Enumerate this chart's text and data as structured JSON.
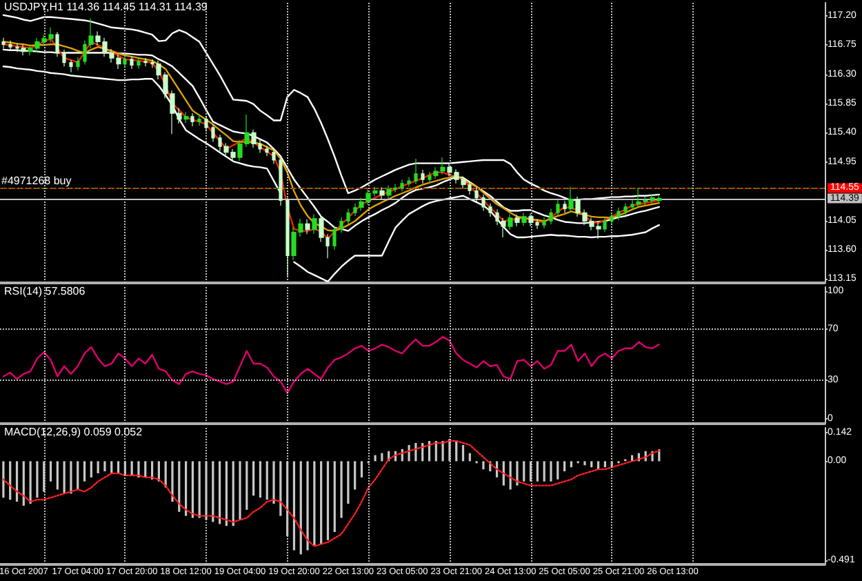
{
  "chart_data": [
    {
      "type": "candlestick",
      "title": "USDJPY,H1 114.36 114.45 114.31 114.39",
      "categories": [
        null,
        null,
        null,
        null,
        null,
        null,
        null,
        null,
        null,
        null,
        null,
        null,
        null,
        null,
        null,
        null,
        null,
        null,
        null,
        null,
        null,
        null,
        null,
        null,
        null,
        null,
        null,
        null,
        null,
        null,
        null,
        null,
        null,
        null,
        null,
        null,
        null,
        null,
        null,
        null,
        null,
        null,
        null,
        null,
        null,
        null,
        null,
        null,
        null,
        null,
        null,
        null,
        null,
        null,
        null,
        null,
        null,
        null,
        null,
        null,
        null,
        null,
        null,
        null,
        null,
        null,
        null,
        null,
        null,
        null,
        null,
        null,
        null,
        null,
        null,
        null,
        null,
        null,
        null,
        null,
        null,
        null,
        null,
        null,
        null,
        null,
        null,
        null,
        null,
        null,
        null,
        null,
        null,
        null,
        null,
        null,
        null,
        null,
        null,
        null,
        null,
        null,
        null,
        null,
        null,
        null,
        null,
        null,
        null,
        null,
        null,
        null,
        null,
        null,
        null,
        null,
        null,
        null,
        null,
        null,
        null,
        null
      ],
      "ohlc": [
        [
          116.8,
          116.86,
          116.7,
          116.76
        ],
        [
          116.76,
          116.82,
          116.66,
          116.72
        ],
        [
          116.72,
          116.78,
          116.64,
          116.7
        ],
        [
          116.7,
          116.76,
          116.59,
          116.65
        ],
        [
          116.65,
          116.76,
          116.59,
          116.7
        ],
        [
          116.7,
          116.86,
          116.64,
          116.8
        ],
        [
          116.8,
          116.91,
          116.74,
          116.85
        ],
        [
          116.85,
          117.02,
          116.79,
          116.91
        ],
        [
          116.91,
          116.95,
          116.57,
          116.63
        ],
        [
          116.63,
          116.68,
          116.42,
          116.48
        ],
        [
          116.48,
          116.52,
          116.33,
          116.42
        ],
        [
          116.42,
          116.56,
          116.36,
          116.5
        ],
        [
          116.5,
          116.82,
          116.45,
          116.76
        ],
        [
          116.76,
          117.16,
          116.7,
          116.89
        ],
        [
          116.89,
          116.96,
          116.74,
          116.8
        ],
        [
          116.8,
          116.86,
          116.57,
          116.63
        ],
        [
          116.63,
          116.69,
          116.48,
          116.55
        ],
        [
          116.55,
          116.6,
          116.38,
          116.46
        ],
        [
          116.46,
          116.59,
          116.4,
          116.53
        ],
        [
          116.53,
          116.58,
          116.38,
          116.44
        ],
        [
          116.44,
          116.56,
          116.39,
          116.5
        ],
        [
          116.5,
          116.55,
          116.42,
          116.48
        ],
        [
          116.48,
          116.53,
          116.4,
          116.46
        ],
        [
          116.46,
          116.51,
          116.22,
          116.29
        ],
        [
          116.29,
          116.33,
          115.93,
          116.0
        ],
        [
          116.0,
          116.05,
          115.38,
          115.7
        ],
        [
          115.7,
          115.78,
          115.54,
          115.61
        ],
        [
          115.61,
          115.72,
          115.55,
          115.65
        ],
        [
          115.65,
          115.7,
          115.5,
          115.57
        ],
        [
          115.57,
          115.68,
          115.51,
          115.61
        ],
        [
          115.61,
          115.66,
          115.42,
          115.48
        ],
        [
          115.48,
          115.53,
          115.26,
          115.32
        ],
        [
          115.32,
          115.37,
          115.12,
          115.19
        ],
        [
          115.19,
          115.24,
          115.03,
          115.1
        ],
        [
          115.1,
          115.15,
          114.96,
          115.02
        ],
        [
          115.02,
          115.29,
          114.97,
          115.23
        ],
        [
          115.23,
          115.68,
          115.18,
          115.4
        ],
        [
          115.4,
          115.45,
          115.17,
          115.23
        ],
        [
          115.23,
          115.29,
          115.09,
          115.15
        ],
        [
          115.15,
          115.2,
          115.04,
          115.1
        ],
        [
          115.1,
          115.15,
          114.92,
          114.98
        ],
        [
          114.98,
          115.02,
          114.28,
          114.36
        ],
        [
          114.36,
          114.4,
          113.19,
          113.51
        ],
        [
          113.51,
          113.95,
          113.44,
          113.87
        ],
        [
          113.87,
          114.08,
          113.8,
          114.0
        ],
        [
          114.0,
          114.07,
          113.84,
          113.91
        ],
        [
          113.91,
          114.15,
          113.85,
          114.08
        ],
        [
          114.08,
          114.13,
          113.72,
          113.79
        ],
        [
          113.79,
          113.84,
          113.47,
          113.66
        ],
        [
          113.66,
          113.97,
          113.6,
          113.91
        ],
        [
          113.91,
          114.1,
          113.86,
          114.04
        ],
        [
          114.04,
          114.23,
          113.99,
          114.17
        ],
        [
          114.17,
          114.31,
          114.12,
          114.25
        ],
        [
          114.25,
          114.4,
          114.2,
          114.34
        ],
        [
          114.34,
          114.53,
          114.29,
          114.47
        ],
        [
          114.47,
          114.57,
          114.42,
          114.51
        ],
        [
          114.51,
          114.56,
          114.38,
          114.44
        ],
        [
          114.44,
          114.59,
          114.39,
          114.53
        ],
        [
          114.53,
          114.61,
          114.48,
          114.55
        ],
        [
          114.55,
          114.68,
          114.5,
          114.62
        ],
        [
          114.62,
          114.72,
          114.57,
          114.66
        ],
        [
          114.66,
          115.0,
          114.61,
          114.77
        ],
        [
          114.77,
          114.83,
          114.62,
          114.68
        ],
        [
          114.68,
          114.8,
          114.63,
          114.74
        ],
        [
          114.74,
          114.87,
          114.69,
          114.81
        ],
        [
          114.81,
          115.02,
          114.76,
          114.87
        ],
        [
          114.87,
          114.92,
          114.73,
          114.79
        ],
        [
          114.79,
          114.84,
          114.62,
          114.68
        ],
        [
          114.68,
          114.73,
          114.54,
          114.6
        ],
        [
          114.6,
          114.65,
          114.45,
          114.51
        ],
        [
          114.51,
          114.56,
          114.34,
          114.4
        ],
        [
          114.4,
          114.45,
          114.2,
          114.26
        ],
        [
          114.26,
          114.31,
          114.11,
          114.17
        ],
        [
          114.17,
          114.22,
          113.98,
          114.04
        ],
        [
          114.04,
          114.09,
          113.79,
          113.96
        ],
        [
          113.96,
          114.15,
          113.91,
          114.09
        ],
        [
          114.09,
          114.14,
          113.96,
          114.02
        ],
        [
          114.02,
          114.17,
          113.97,
          114.11
        ],
        [
          114.11,
          114.16,
          113.96,
          114.02
        ],
        [
          114.02,
          114.07,
          113.92,
          113.98
        ],
        [
          113.98,
          114.1,
          113.93,
          114.04
        ],
        [
          114.04,
          114.23,
          113.99,
          114.17
        ],
        [
          114.17,
          114.36,
          114.12,
          114.3
        ],
        [
          114.3,
          114.35,
          114.17,
          114.23
        ],
        [
          114.23,
          114.57,
          114.18,
          114.38
        ],
        [
          114.38,
          114.42,
          114.11,
          114.17
        ],
        [
          114.17,
          114.22,
          113.98,
          114.04
        ],
        [
          114.04,
          114.09,
          113.9,
          113.96
        ],
        [
          113.96,
          114.01,
          113.77,
          113.92
        ],
        [
          113.92,
          114.1,
          113.87,
          114.04
        ],
        [
          114.04,
          114.17,
          113.99,
          114.11
        ],
        [
          114.11,
          114.25,
          114.06,
          114.19
        ],
        [
          114.19,
          114.32,
          114.14,
          114.26
        ],
        [
          114.26,
          114.36,
          114.21,
          114.3
        ],
        [
          114.3,
          114.55,
          114.25,
          114.34
        ],
        [
          114.34,
          114.42,
          114.29,
          114.36
        ],
        [
          114.36,
          114.46,
          114.31,
          114.4
        ],
        [
          114.36,
          114.45,
          114.31,
          114.39
        ],
        null,
        null,
        null,
        null,
        null,
        null,
        null,
        null,
        null,
        null,
        null,
        null,
        null,
        null,
        null,
        null,
        null,
        null,
        null,
        null,
        null,
        null,
        null,
        null
      ],
      "colors": [
        "#c8ffc8",
        "#c8ffc8",
        "#c8ffc8",
        "#c8ffc8",
        "#22dd22",
        "#22dd22",
        "#22dd22",
        "#22dd22",
        "#c8ffc8",
        "#c8ffc8",
        "#c8ffc8",
        "#22dd22",
        "#22dd22",
        "#22dd22",
        "#c8ffc8",
        "#c8ffc8",
        "#c8ffc8",
        "#c8ffc8",
        "#22dd22",
        "#c8ffc8",
        "#22dd22",
        "#c8ffc8",
        "#c8ffc8",
        "#c8ffc8",
        "#c8ffc8",
        "#c8ffc8",
        "#c8ffc8",
        "#22dd22",
        "#c8ffc8",
        "#22dd22",
        "#c8ffc8",
        "#c8ffc8",
        "#c8ffc8",
        "#c8ffc8",
        "#c8ffc8",
        "#22dd22",
        "#22dd22",
        "#c8ffc8",
        "#c8ffc8",
        "#c8ffc8",
        "#c8ffc8",
        "#c8ffc8",
        "#c8ffc8",
        "#22dd22",
        "#22dd22",
        "#c8ffc8",
        "#22dd22",
        "#c8ffc8",
        "#c8ffc8",
        "#22dd22",
        "#22dd22",
        "#22dd22",
        "#22dd22",
        "#22dd22",
        "#22dd22",
        "#22dd22",
        "#c8ffc8",
        "#22dd22",
        "#22dd22",
        "#22dd22",
        "#22dd22",
        "#22dd22",
        "#c8ffc8",
        "#22dd22",
        "#22dd22",
        "#22dd22",
        "#c8ffc8",
        "#c8ffc8",
        "#c8ffc8",
        "#c8ffc8",
        "#c8ffc8",
        "#c8ffc8",
        "#c8ffc8",
        "#c8ffc8",
        "#c8ffc8",
        "#22dd22",
        "#c8ffc8",
        "#22dd22",
        "#c8ffc8",
        "#c8ffc8",
        "#22dd22",
        "#22dd22",
        "#22dd22",
        "#c8ffc8",
        "#22dd22",
        "#c8ffc8",
        "#c8ffc8",
        "#c8ffc8",
        "#c8ffc8",
        "#22dd22",
        "#22dd22",
        "#22dd22",
        "#22dd22",
        "#22dd22",
        "#22dd22",
        "#22dd22",
        "#22dd22",
        "#22dd22",
        null,
        null,
        null,
        null,
        null,
        null,
        null,
        null,
        null,
        null,
        null,
        null,
        null,
        null,
        null,
        null,
        null,
        null,
        null,
        null,
        null,
        null,
        null,
        null
      ],
      "series": [
        {
          "type": "line",
          "color": "#ffffff",
          "values": [
            117.21,
            117.19,
            117.17,
            117.14,
            117.12,
            117.15,
            117.18,
            117.18,
            117.17,
            117.16,
            117.15,
            117.14,
            117.13,
            117.11,
            117.08,
            117.05,
            117.02,
            117.01,
            117.0,
            116.99,
            116.97,
            116.94,
            116.91,
            116.81,
            116.82,
            116.93,
            116.98,
            116.94,
            116.87,
            116.8,
            116.63,
            116.46,
            116.29,
            116.1,
            115.91,
            115.9,
            115.89,
            115.84,
            115.74,
            115.67,
            115.59,
            115.59,
            115.95,
            116.06,
            116.01,
            115.95,
            115.77,
            115.55,
            115.3,
            115.03,
            114.74,
            114.47,
            114.51,
            114.56,
            114.62,
            114.68,
            114.73,
            114.78,
            114.83,
            114.87,
            114.91,
            114.93,
            114.93,
            114.93,
            114.93,
            114.93,
            114.93,
            114.94,
            114.95,
            114.96,
            114.97,
            114.98,
            114.98,
            114.98,
            114.98,
            114.92,
            114.79,
            114.68,
            114.62,
            114.57,
            114.51,
            114.47,
            114.44,
            114.4,
            114.36,
            114.37,
            114.38,
            114.38,
            114.39,
            114.4,
            114.41,
            114.41,
            114.42,
            114.42,
            114.43,
            114.43,
            114.44,
            114.45,
            null,
            null,
            null,
            null,
            null,
            null,
            null,
            null,
            null,
            null,
            null,
            null,
            null,
            null,
            null,
            null,
            null,
            null,
            null,
            null,
            null,
            null,
            null,
            null
          ]
        },
        {
          "type": "line",
          "color": "#ffffff",
          "values": [
            116.68,
            116.67,
            116.67,
            116.66,
            116.66,
            116.65,
            116.64,
            116.64,
            116.63,
            116.63,
            116.63,
            116.63,
            116.63,
            116.63,
            116.63,
            116.63,
            116.63,
            116.62,
            116.62,
            116.61,
            116.6,
            116.6,
            116.59,
            116.53,
            116.48,
            116.42,
            116.32,
            116.22,
            116.12,
            115.94,
            115.75,
            115.57,
            115.52,
            115.47,
            115.42,
            115.4,
            115.39,
            115.35,
            115.3,
            115.25,
            115.15,
            115.04,
            114.86,
            114.68,
            114.54,
            114.4,
            114.26,
            114.11,
            114.03,
            113.94,
            113.92,
            113.89,
            113.97,
            114.04,
            114.1,
            114.15,
            114.21,
            114.26,
            114.32,
            114.4,
            114.47,
            114.52,
            114.54,
            114.56,
            114.59,
            114.64,
            114.68,
            114.72,
            114.71,
            114.64,
            114.57,
            114.5,
            114.43,
            114.34,
            114.25,
            114.2,
            114.2,
            114.21,
            114.21,
            114.17,
            114.13,
            114.1,
            114.06,
            114.03,
            114.02,
            114.01,
            114.01,
            114.02,
            114.03,
            114.04,
            114.07,
            114.1,
            114.12,
            114.15,
            114.18,
            114.2,
            114.23,
            114.26,
            null,
            null,
            null,
            null,
            null,
            null,
            null,
            null,
            null,
            null,
            null,
            null,
            null,
            null,
            null,
            null,
            null,
            null,
            null,
            null,
            null,
            null,
            null,
            null
          ]
        },
        {
          "type": "line",
          "color": "#ffffff",
          "values": [
            116.42,
            116.41,
            116.39,
            116.38,
            116.37,
            116.35,
            116.34,
            116.32,
            116.31,
            116.3,
            116.28,
            116.27,
            116.26,
            116.25,
            116.24,
            116.23,
            116.22,
            116.21,
            116.21,
            116.22,
            116.22,
            116.23,
            116.23,
            116.12,
            115.98,
            115.82,
            115.61,
            115.44,
            115.37,
            115.3,
            115.24,
            115.17,
            115.1,
            115.03,
            114.96,
            114.93,
            114.9,
            114.88,
            114.87,
            114.85,
            114.66,
            114.47,
            null,
            113.41,
            113.34,
            113.26,
            113.21,
            113.16,
            113.11,
            113.23,
            113.34,
            113.43,
            113.51,
            113.51,
            113.51,
            113.51,
            113.51,
            113.73,
            113.94,
            114.05,
            114.15,
            114.21,
            114.27,
            114.32,
            114.35,
            114.37,
            114.39,
            114.41,
            114.43,
            114.38,
            114.33,
            114.28,
            114.2,
            114.08,
            113.95,
            113.84,
            113.79,
            113.79,
            113.8,
            113.81,
            113.82,
            113.83,
            113.82,
            113.82,
            113.81,
            113.8,
            113.8,
            113.79,
            113.8,
            113.8,
            113.81,
            113.81,
            113.82,
            113.83,
            113.85,
            113.87,
            113.93,
            113.98,
            null,
            null,
            null,
            null,
            null,
            null,
            null,
            null,
            null,
            null,
            null,
            null,
            null,
            null,
            null,
            null,
            null,
            null,
            null,
            null,
            null,
            null,
            null,
            null
          ]
        },
        {
          "type": "line",
          "color": "#ee2200",
          "values": [
            116.76,
            116.75,
            116.73,
            116.72,
            116.7,
            116.75,
            116.8,
            116.85,
            116.7,
            116.55,
            116.52,
            116.48,
            116.64,
            116.8,
            116.75,
            116.7,
            116.64,
            116.59,
            116.53,
            116.52,
            116.51,
            116.49,
            116.48,
            116.34,
            116.13,
            115.85,
            115.75,
            115.64,
            115.6,
            115.57,
            115.53,
            115.4,
            115.28,
            115.15,
            115.21,
            115.26,
            115.32,
            115.25,
            115.18,
            115.11,
            115.04,
            114.79,
            114.26,
            113.92,
            113.89,
            113.89,
            113.92,
            113.88,
            113.77,
            113.88,
            113.99,
            114.09,
            114.2,
            114.3,
            114.35,
            114.4,
            114.45,
            114.49,
            114.53,
            114.58,
            114.62,
            114.66,
            114.7,
            114.75,
            114.79,
            114.79,
            114.75,
            114.72,
            114.68,
            114.57,
            114.47,
            114.36,
            114.25,
            114.15,
            114.04,
            114.06,
            114.07,
            114.09,
            114.07,
            114.04,
            114.02,
            114.1,
            114.18,
            114.26,
            114.24,
            114.21,
            114.12,
            114.03,
            114.01,
            114.06,
            114.11,
            114.17,
            114.22,
            114.28,
            114.3,
            114.32,
            114.34,
            114.36,
            null,
            null,
            null,
            null,
            null,
            null,
            null,
            null,
            null,
            null,
            null,
            null,
            null,
            null,
            null,
            null,
            null,
            null,
            null,
            null,
            null,
            null,
            null,
            null
          ]
        },
        {
          "type": "line",
          "color": "#e0a000",
          "values": [
            116.8,
            116.79,
            116.77,
            116.76,
            116.74,
            116.75,
            116.75,
            116.76,
            116.76,
            116.73,
            116.7,
            116.66,
            116.63,
            116.68,
            116.72,
            116.69,
            116.66,
            116.62,
            116.59,
            116.57,
            116.55,
            116.53,
            116.51,
            116.45,
            116.38,
            116.22,
            116.06,
            115.9,
            115.74,
            115.67,
            115.6,
            115.53,
            115.44,
            115.36,
            115.27,
            115.26,
            115.26,
            115.25,
            115.23,
            115.18,
            115.13,
            115.0,
            114.79,
            114.5,
            114.28,
            114.12,
            114.01,
            113.96,
            113.9,
            113.89,
            113.93,
            113.98,
            114.04,
            114.13,
            114.22,
            114.28,
            114.33,
            114.38,
            114.43,
            114.47,
            114.51,
            114.56,
            114.6,
            114.63,
            114.66,
            114.69,
            114.71,
            114.74,
            114.68,
            114.62,
            114.57,
            114.48,
            114.39,
            114.3,
            114.24,
            114.17,
            114.11,
            114.09,
            114.07,
            114.06,
            114.04,
            114.08,
            114.12,
            114.15,
            114.19,
            114.16,
            114.14,
            114.11,
            114.1,
            114.1,
            114.09,
            114.13,
            114.17,
            114.22,
            114.26,
            114.28,
            114.3,
            114.32,
            null,
            null,
            null,
            null,
            null,
            null,
            null,
            null,
            null,
            null,
            null,
            null,
            null,
            null,
            null,
            null,
            null,
            null,
            null,
            null,
            null,
            null,
            null,
            null
          ]
        }
      ],
      "ylim": [
        113.09,
        117.4
      ],
      "yticks": [
        113.15,
        {
          "value": 113.6,
          "label": "113.60"
        },
        114.05,
        114.95,
        {
          "value": 115.4,
          "label": "115.40"
        },
        115.85,
        {
          "value": 116.3,
          "label": "116.30"
        },
        116.75,
        {
          "value": 117.2,
          "label": "117.20"
        }
      ],
      "ref_lines": [
        {
          "axis": "y",
          "value": 114.55,
          "label": "#4971268 buy",
          "color": "#00c000",
          "line_style": "dashed"
        },
        {
          "axis": "y",
          "value": 114.55,
          "label": "114.55",
          "color": "#ff0000",
          "line_style": "dotted"
        },
        {
          "axis": "y",
          "value": 114.39,
          "label": "114.39",
          "color": "#c0c0c0",
          "line_style": "solid"
        }
      ]
    },
    {
      "type": "line",
      "title": "RSI(14) 57.5806",
      "color": "#e0006e",
      "categories": [
        null,
        null,
        null,
        null,
        null,
        null,
        null,
        null,
        null,
        null,
        null,
        null,
        null,
        null,
        null,
        null,
        null,
        null,
        null,
        null,
        null,
        null,
        null,
        null,
        null,
        null,
        null,
        null,
        null,
        null,
        null,
        null,
        null,
        null,
        null,
        null,
        null,
        null,
        null,
        null,
        null,
        null,
        null,
        null,
        null,
        null,
        null,
        null,
        null,
        null,
        null,
        null,
        null,
        null,
        null,
        null,
        null,
        null,
        null,
        null,
        null,
        null,
        null,
        null,
        null,
        null,
        null,
        null,
        null,
        null,
        null,
        null,
        null,
        null,
        null,
        null,
        null,
        null,
        null,
        null,
        null,
        null,
        null,
        null,
        null,
        null,
        null,
        null,
        null,
        null,
        null,
        null,
        null,
        null,
        null,
        null,
        null,
        null,
        null,
        null,
        null,
        null,
        null,
        null,
        null,
        null,
        null,
        null,
        null,
        null,
        null,
        null,
        null,
        null,
        null,
        null,
        null,
        null,
        null,
        null,
        null,
        null
      ],
      "values": [
        33,
        36,
        31,
        35,
        37,
        47,
        52,
        46,
        33,
        41,
        35,
        41,
        51,
        56,
        47,
        41,
        43,
        51,
        47,
        41,
        47,
        43,
        50,
        39,
        37,
        30,
        27,
        35,
        37,
        35,
        34,
        31,
        29,
        27,
        29,
        41,
        53,
        43,
        43,
        40,
        33,
        29,
        20,
        29,
        35,
        39,
        35,
        31,
        40,
        46,
        48,
        51,
        55,
        57,
        53,
        55,
        58,
        56,
        53,
        51,
        57,
        62,
        57,
        57,
        60,
        64,
        61,
        51,
        46,
        43,
        40,
        45,
        41,
        42,
        33,
        31,
        45,
        46,
        41,
        45,
        39,
        42,
        53,
        53,
        58,
        45,
        51,
        41,
        48,
        51,
        47,
        53,
        55,
        55,
        60,
        56,
        55,
        58,
        null,
        null,
        null,
        null,
        null,
        null,
        null,
        null,
        null,
        null,
        null,
        null,
        null,
        null,
        null,
        null,
        null,
        null,
        null,
        null,
        null,
        null,
        null,
        null
      ],
      "ylim": [
        -4,
        103
      ],
      "yticks": [
        0,
        30,
        70,
        100
      ],
      "ref_lines": [
        {
          "axis": "y",
          "value": 70,
          "color": "#c0c0c0",
          "line_style": "dotted"
        },
        {
          "axis": "y",
          "value": 30,
          "color": "#c0c0c0",
          "line_style": "dotted"
        }
      ]
    },
    {
      "type": "bar",
      "title": "MACD(12,26,9) 0.059 0.052",
      "color": "#c8c8c8",
      "categories": [
        null,
        null,
        null,
        "16 Oct 2007",
        null,
        null,
        null,
        null,
        null,
        null,
        null,
        "17 Oct 04:00",
        null,
        null,
        null,
        null,
        null,
        null,
        null,
        "17 Oct 20:00",
        null,
        null,
        null,
        null,
        null,
        null,
        null,
        "18 Oct 12:00",
        null,
        null,
        null,
        null,
        null,
        null,
        null,
        "19 Oct 04:00",
        null,
        null,
        null,
        null,
        null,
        null,
        null,
        "19 Oct 20:00",
        null,
        null,
        null,
        null,
        null,
        null,
        null,
        "22 Oct 13:00",
        null,
        null,
        null,
        null,
        null,
        null,
        null,
        "23 Oct 05:00",
        null,
        null,
        null,
        null,
        null,
        null,
        null,
        "23 Oct 21:00",
        null,
        null,
        null,
        null,
        null,
        null,
        null,
        "24 Oct 13:00",
        null,
        null,
        null,
        null,
        null,
        null,
        null,
        "25 Oct 05:00",
        null,
        null,
        null,
        null,
        null,
        null,
        null,
        "25 Oct 21:00",
        null,
        null,
        null,
        null,
        null,
        null,
        null,
        "26 Oct 13:00",
        null,
        null,
        null,
        null,
        null,
        null,
        null,
        null,
        null,
        null,
        null,
        null,
        null,
        null,
        null,
        null,
        null,
        null,
        null,
        null,
        null,
        null
      ],
      "values": [
        -0.18,
        -0.19,
        -0.2,
        -0.22,
        -0.21,
        -0.18,
        -0.15,
        -0.1,
        -0.14,
        -0.16,
        -0.16,
        -0.14,
        -0.1,
        -0.08,
        -0.06,
        -0.05,
        -0.06,
        -0.06,
        -0.07,
        -0.07,
        -0.08,
        -0.08,
        -0.09,
        -0.1,
        -0.13,
        -0.2,
        -0.25,
        -0.27,
        -0.28,
        -0.28,
        -0.29,
        -0.3,
        -0.31,
        -0.32,
        -0.32,
        -0.29,
        -0.24,
        -0.17,
        -0.18,
        -0.19,
        -0.21,
        -0.27,
        -0.37,
        -0.44,
        -0.46,
        -0.44,
        -0.42,
        -0.41,
        -0.39,
        -0.35,
        -0.28,
        -0.21,
        -0.14,
        -0.08,
        -0.01,
        0.03,
        0.04,
        0.05,
        0.05,
        0.06,
        0.08,
        0.09,
        0.09,
        0.1,
        0.1,
        0.1,
        0.11,
        0.1,
        0.08,
        0.04,
        -0.01,
        -0.04,
        -0.05,
        -0.08,
        -0.12,
        -0.14,
        -0.12,
        -0.1,
        -0.1,
        -0.1,
        -0.1,
        -0.1,
        -0.09,
        -0.05,
        -0.03,
        -0.01,
        -0.02,
        -0.03,
        -0.04,
        -0.03,
        -0.03,
        -0.01,
        0.01,
        0.03,
        0.04,
        0.05,
        0.05,
        0.059,
        null,
        null,
        null,
        null,
        null,
        null,
        null,
        null,
        null,
        null,
        null,
        null,
        null,
        null,
        null,
        null,
        null,
        null,
        null,
        null,
        null,
        null,
        null,
        null
      ],
      "series": [
        {
          "type": "line",
          "color": "#ff2020",
          "line_style": "dotted",
          "values": [
            -0.09,
            -0.12,
            -0.15,
            -0.17,
            -0.2,
            -0.19,
            -0.19,
            -0.18,
            -0.17,
            -0.16,
            -0.15,
            -0.14,
            -0.15,
            -0.13,
            -0.1,
            -0.08,
            -0.06,
            -0.06,
            -0.07,
            -0.07,
            -0.07,
            -0.08,
            -0.08,
            -0.09,
            -0.12,
            -0.17,
            -0.21,
            -0.24,
            -0.26,
            -0.27,
            -0.27,
            -0.27,
            -0.28,
            -0.29,
            -0.3,
            -0.29,
            -0.28,
            -0.25,
            -0.23,
            -0.2,
            -0.19,
            -0.2,
            -0.24,
            -0.28,
            -0.34,
            -0.39,
            -0.42,
            -0.41,
            -0.4,
            -0.38,
            -0.36,
            -0.31,
            -0.26,
            -0.2,
            -0.13,
            -0.09,
            -0.04,
            0.01,
            0.03,
            0.04,
            0.05,
            0.06,
            0.07,
            0.08,
            0.09,
            0.09,
            0.1,
            0.1,
            0.09,
            0.08,
            0.05,
            0.02,
            -0.01,
            -0.04,
            -0.06,
            -0.08,
            -0.1,
            -0.11,
            -0.12,
            -0.12,
            -0.12,
            -0.12,
            -0.11,
            -0.1,
            -0.09,
            -0.07,
            -0.06,
            -0.05,
            -0.04,
            -0.04,
            -0.03,
            -0.02,
            -0.01,
            0.0,
            0.01,
            0.02,
            0.04,
            0.052,
            null,
            null,
            null,
            null,
            null,
            null,
            null,
            null,
            null,
            null,
            null,
            null,
            null,
            null,
            null,
            null,
            null,
            null,
            null,
            null,
            null,
            null,
            null,
            null
          ]
        }
      ],
      "ylim": [
        -0.51,
        0.165
      ],
      "yticks": [
        -0.491,
        {
          "value": 0,
          "label": "0.00"
        },
        0.142
      ]
    }
  ]
}
